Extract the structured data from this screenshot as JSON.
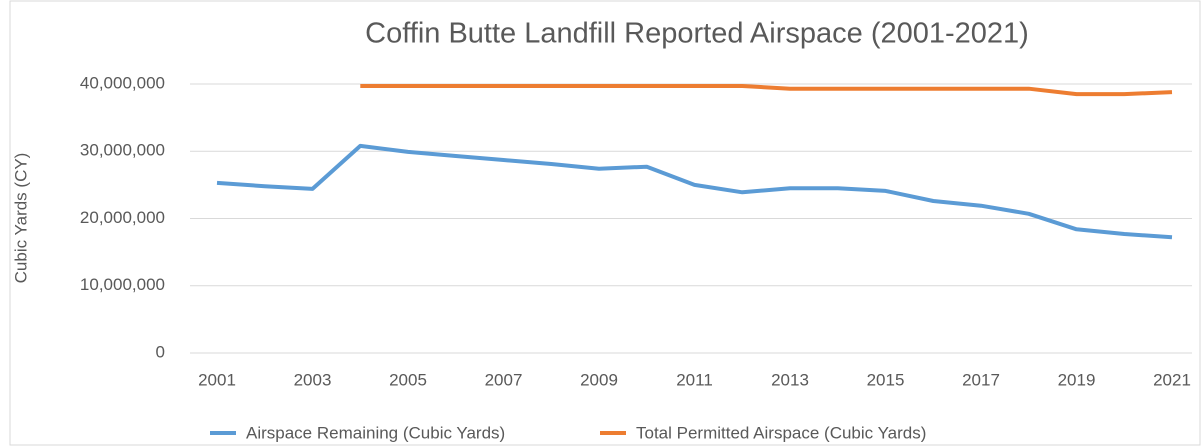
{
  "chart_data": {
    "type": "line",
    "title": "Coffin Butte Landfill Reported Airspace (2001-2021)",
    "y_label": "Cubic Yards (CY)",
    "x": [
      2001,
      2002,
      2003,
      2004,
      2005,
      2006,
      2007,
      2008,
      2009,
      2010,
      2011,
      2012,
      2013,
      2014,
      2015,
      2016,
      2017,
      2018,
      2019,
      2020,
      2021
    ],
    "xlim": [
      2001,
      2021
    ],
    "xticks": [
      2001,
      2003,
      2005,
      2007,
      2009,
      2011,
      2013,
      2015,
      2017,
      2019,
      2021
    ],
    "ylim": [
      0,
      40000000
    ],
    "yticks": [
      0,
      {
        "value": 10000000,
        "label": "10,000,000"
      },
      {
        "value": 20000000,
        "label": "20,000,000"
      },
      {
        "value": 30000000,
        "label": "30,000,000"
      },
      {
        "value": 40000000,
        "label": "40,000,000"
      }
    ],
    "grid": true,
    "legend": "bottom",
    "series": [
      {
        "name": "Airspace Remaining (Cubic Yards)",
        "color": "#5b9bd5",
        "values": [
          25300000,
          24800000,
          24400000,
          30800000,
          29900000,
          29300000,
          28700000,
          28100000,
          27400000,
          27700000,
          25000000,
          23900000,
          24500000,
          24500000,
          24100000,
          22600000,
          21900000,
          20700000,
          18400000,
          17700000,
          17200000
        ]
      },
      {
        "name": "Total Permitted Airspace (Cubic Yards)",
        "color": "#ed7d31",
        "values": [
          null,
          null,
          null,
          39700000,
          39700000,
          39700000,
          39700000,
          39700000,
          39700000,
          39700000,
          39700000,
          39700000,
          39300000,
          39300000,
          39300000,
          39300000,
          39300000,
          39300000,
          38500000,
          38500000,
          38800000
        ]
      }
    ]
  }
}
